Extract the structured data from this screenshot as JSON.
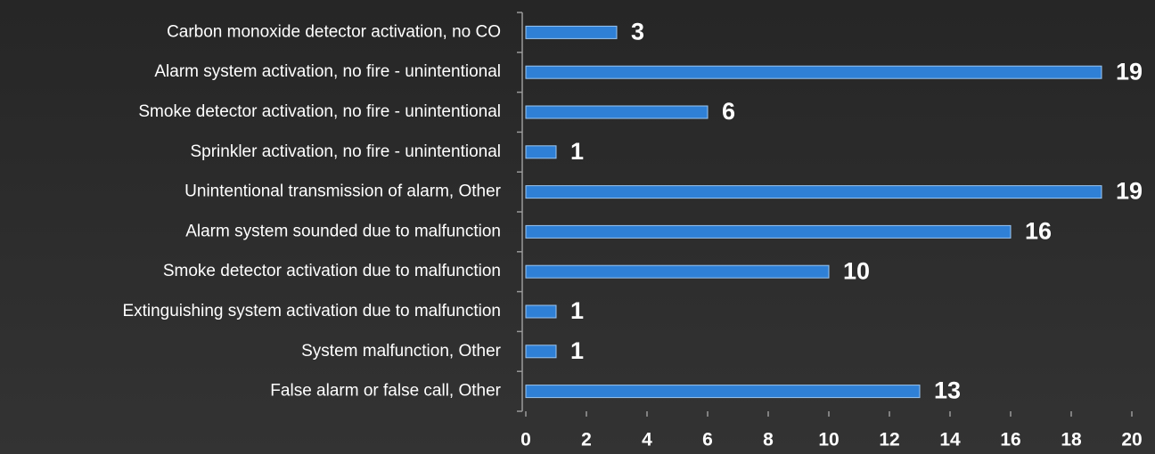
{
  "chart_data": {
    "type": "barh",
    "categories": [
      "Carbon monoxide detector activation, no CO",
      "Alarm system activation, no fire - unintentional",
      "Smoke detector activation, no fire - unintentional",
      "Sprinkler activation, no fire - unintentional",
      "Unintentional transmission of alarm, Other",
      "Alarm system sounded due to malfunction",
      "Smoke detector activation due to malfunction",
      "Extinguishing system activation due to malfunction",
      "System malfunction, Other",
      "False alarm or false call, Other"
    ],
    "values": [
      3,
      19,
      6,
      1,
      19,
      16,
      10,
      1,
      1,
      13
    ],
    "color": "#2f80d6",
    "xlim": [
      0,
      20
    ],
    "xticks": [
      0,
      2,
      4,
      6,
      8,
      10,
      12,
      14,
      16,
      18,
      20
    ],
    "grid": false
  }
}
